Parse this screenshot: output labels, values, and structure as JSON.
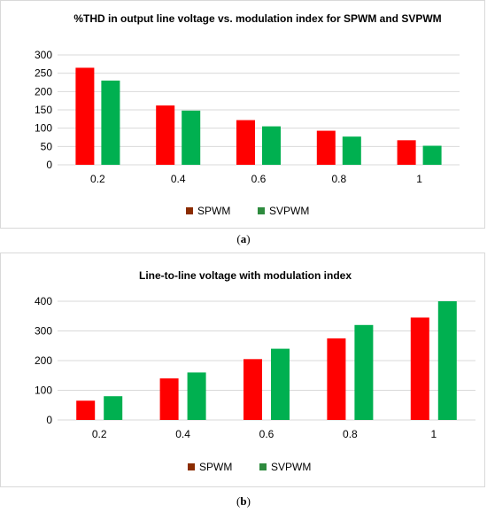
{
  "colors": {
    "spwm_fill": "#ff0000",
    "svpwm_fill": "#00b050",
    "spwm_legend": "#8b2c00",
    "svpwm_legend": "#2e8b3e",
    "grid": "#d9d9d9"
  },
  "chart_data": [
    {
      "type": "bar",
      "title": "%THD in output line voltage vs. modulation index for SPWM and SVPWM",
      "categories": [
        "0.2",
        "0.4",
        "0.6",
        "0.8",
        "1"
      ],
      "series": [
        {
          "name": "SPWM",
          "values": [
            265,
            162,
            122,
            93,
            67
          ]
        },
        {
          "name": "SVPWM",
          "values": [
            230,
            148,
            105,
            77,
            52
          ]
        }
      ],
      "ylim": [
        0,
        300
      ],
      "yticks": [
        "0",
        "50",
        "100",
        "150",
        "200",
        "250",
        "300"
      ],
      "grid": true,
      "legend": "bottom"
    },
    {
      "type": "bar",
      "title": "Line-to-line voltage with modulation index",
      "categories": [
        "0.2",
        "0.4",
        "0.6",
        "0.8",
        "1"
      ],
      "series": [
        {
          "name": "SPWM",
          "values": [
            65,
            140,
            205,
            275,
            345
          ]
        },
        {
          "name": "SVPWM",
          "values": [
            80,
            160,
            240,
            320,
            400
          ]
        }
      ],
      "ylim": [
        0,
        400
      ],
      "yticks": [
        "0",
        "100",
        "200",
        "300",
        "400"
      ],
      "grid": true,
      "legend": "bottom"
    }
  ],
  "captions": [
    "a",
    "b"
  ]
}
